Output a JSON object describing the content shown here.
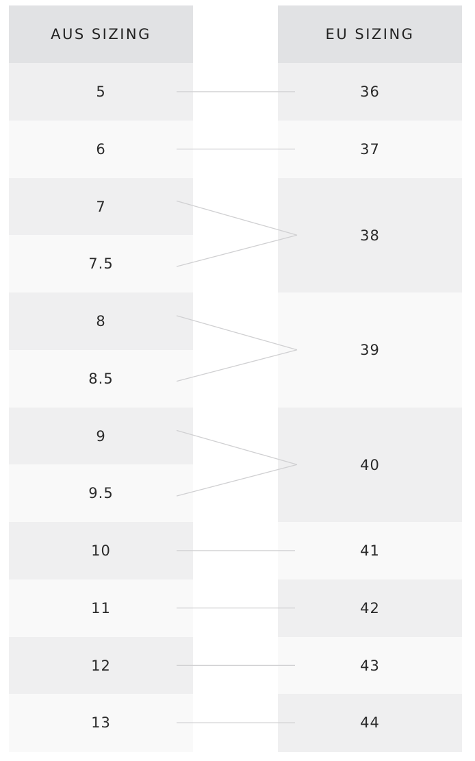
{
  "headers": {
    "aus": "AUS SIZING",
    "eu": "EU SIZING"
  },
  "aus_sizes": [
    "5",
    "6",
    "7",
    "7.5",
    "8",
    "8.5",
    "9",
    "9.5",
    "10",
    "11",
    "12",
    "13"
  ],
  "eu_sizes": [
    {
      "label": "36",
      "aus_rows": 1
    },
    {
      "label": "37",
      "aus_rows": 1
    },
    {
      "label": "38",
      "aus_rows": 2
    },
    {
      "label": "39",
      "aus_rows": 2
    },
    {
      "label": "40",
      "aus_rows": 2
    },
    {
      "label": "41",
      "aus_rows": 1
    },
    {
      "label": "42",
      "aus_rows": 1
    },
    {
      "label": "43",
      "aus_rows": 1
    },
    {
      "label": "44",
      "aus_rows": 1
    }
  ],
  "colors": {
    "header": "#e1e2e4",
    "row_dark": "#efeff0",
    "row_light": "#f9f9f9",
    "connector": "#d0d0d2",
    "text": "#2a2a2a"
  }
}
